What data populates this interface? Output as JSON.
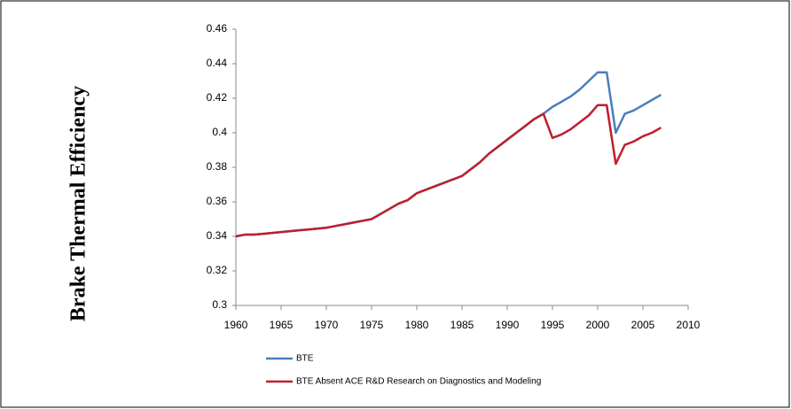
{
  "chart_data": {
    "type": "line",
    "y_label": "Brake Thermal Efficiency",
    "x": [
      1960,
      1961,
      1962,
      1963,
      1964,
      1965,
      1966,
      1967,
      1968,
      1969,
      1970,
      1971,
      1972,
      1973,
      1974,
      1975,
      1976,
      1977,
      1978,
      1979,
      1980,
      1981,
      1982,
      1983,
      1984,
      1985,
      1986,
      1987,
      1988,
      1989,
      1990,
      1991,
      1992,
      1993,
      1994,
      1995,
      1996,
      1997,
      1998,
      1999,
      2000,
      2001,
      2002,
      2003,
      2004,
      2005,
      2006,
      2007
    ],
    "series": [
      {
        "name": "BTE",
        "color": "#4a7ebb",
        "values": [
          0.34,
          0.341,
          0.341,
          0.3415,
          0.342,
          0.3425,
          0.343,
          0.3435,
          0.344,
          0.3445,
          0.345,
          0.346,
          0.347,
          0.348,
          0.349,
          0.35,
          0.353,
          0.356,
          0.359,
          0.361,
          0.365,
          0.367,
          0.369,
          0.371,
          0.373,
          0.375,
          0.379,
          0.383,
          0.388,
          0.392,
          0.396,
          0.4,
          0.404,
          0.408,
          0.411,
          0.415,
          0.418,
          0.421,
          0.425,
          0.43,
          0.435,
          0.435,
          0.4,
          0.411,
          0.413,
          0.416,
          0.419,
          0.422
        ]
      },
      {
        "name": "BTE Absent ACE R&D Research on Diagnostics and Modeling",
        "color": "#be1e2d",
        "values": [
          0.34,
          0.341,
          0.341,
          0.3415,
          0.342,
          0.3425,
          0.343,
          0.3435,
          0.344,
          0.3445,
          0.345,
          0.346,
          0.347,
          0.348,
          0.349,
          0.35,
          0.353,
          0.356,
          0.359,
          0.361,
          0.365,
          0.367,
          0.369,
          0.371,
          0.373,
          0.375,
          0.379,
          0.383,
          0.388,
          0.392,
          0.396,
          0.4,
          0.404,
          0.408,
          0.411,
          0.397,
          0.399,
          0.402,
          0.406,
          0.41,
          0.416,
          0.416,
          0.382,
          0.393,
          0.395,
          0.398,
          0.4,
          0.403
        ]
      }
    ],
    "xlim": [
      1960,
      2010
    ],
    "xticks": [
      1960,
      1965,
      1970,
      1975,
      1980,
      1985,
      1990,
      1995,
      2000,
      2005,
      2010
    ],
    "ylim": [
      0.3,
      0.46
    ],
    "yticks": [
      0.3,
      0.32,
      0.34,
      0.36,
      0.38,
      0.4,
      0.42,
      0.44,
      0.46
    ],
    "grid": false,
    "legend": "bottom"
  }
}
